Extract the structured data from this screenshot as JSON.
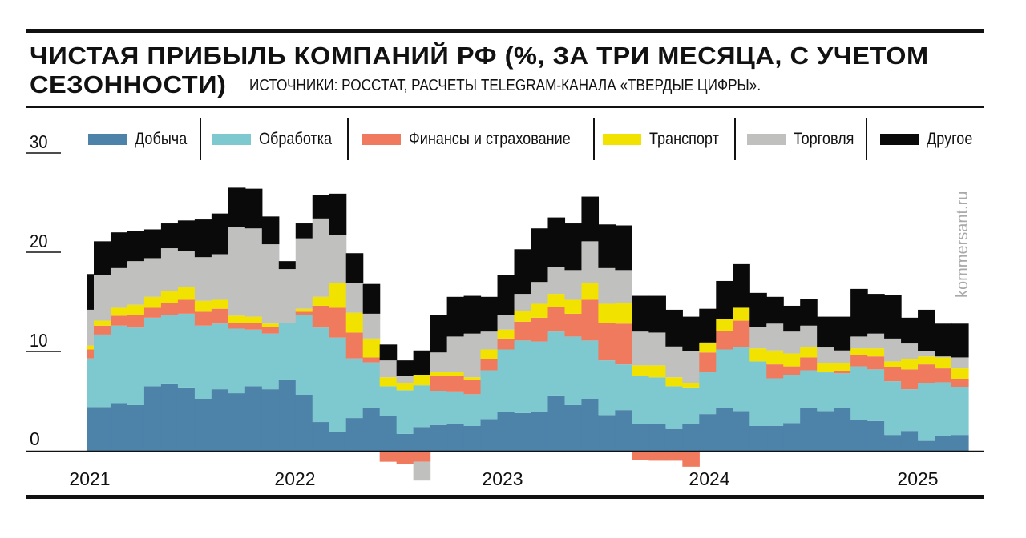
{
  "title_line1": "ЧИСТАЯ ПРИБЫЛЬ КОМПАНИЙ РФ (%, ЗА ТРИ МЕСЯЦА, С УЧЕТОМ",
  "title_line2": "СЕЗОННОСТИ)",
  "source": "ИСТОЧНИКИ: РОССТАТ, РАСЧЕТЫ TELEGRAM-КАНАЛА «ТВЕРДЫЕ ЦИФРЫ».",
  "watermark": "kommersant.ru",
  "chart_data": {
    "type": "bar",
    "stacked": true,
    "title": "ЧИСТАЯ ПРИБЫЛЬ КОМПАНИЙ РФ (%, ЗА ТРИ МЕСЯЦА, С УЧЕТОМ СЕЗОННОСТИ)",
    "xlabel": "",
    "ylabel": "",
    "ylim": [
      -3,
      30
    ],
    "yticks": [
      "0",
      "10",
      "20",
      "30"
    ],
    "xticks": [
      "2021",
      "2022",
      "2023",
      "2024",
      "2025"
    ],
    "legend_position": "top",
    "grid": false,
    "series": [
      {
        "name": "Добыча",
        "color": "#4d82a9",
        "values": [
          4.4,
          4.4,
          4.8,
          4.6,
          6.5,
          6.7,
          6.3,
          5.2,
          6.2,
          5.8,
          6.5,
          6.2,
          7.1,
          5.6,
          2.9,
          1.9,
          3.3,
          4.3,
          3.5,
          1.7,
          2.4,
          2.6,
          2.7,
          2.5,
          3.2,
          3.9,
          3.8,
          3.9,
          5.5,
          4.6,
          5.2,
          3.6,
          4.1,
          2.7,
          2.7,
          2.2,
          2.7,
          3.7,
          4.3,
          4.0,
          2.5,
          2.5,
          2.8,
          4.3,
          4.0,
          4.3,
          3.1,
          3.0,
          1.6,
          2.0,
          1.0,
          1.5,
          1.6
        ]
      },
      {
        "name": "Обработка",
        "color": "#7ec8d0",
        "values": [
          4.9,
          7.3,
          7.8,
          7.8,
          6.9,
          7.0,
          7.5,
          7.4,
          6.6,
          6.5,
          5.7,
          5.6,
          5.8,
          8.1,
          9.5,
          9.5,
          6.0,
          4.6,
          3.0,
          4.4,
          4.2,
          3.4,
          3.2,
          3.2,
          4.9,
          6.3,
          7.3,
          7.1,
          6.5,
          6.9,
          5.9,
          5.5,
          4.6,
          4.8,
          4.7,
          4.3,
          3.6,
          4.2,
          5.9,
          6.4,
          6.5,
          4.8,
          4.8,
          3.8,
          3.9,
          3.5,
          5.4,
          5.2,
          5.4,
          4.2,
          5.8,
          5.4,
          4.8
        ]
      },
      {
        "name": "Финансы и страхование",
        "color": "#f07a5e",
        "values": [
          0.9,
          0.9,
          1.0,
          1.3,
          1.0,
          1.2,
          1.4,
          1.4,
          1.5,
          0.6,
          0.7,
          0.7,
          0,
          0.3,
          2.2,
          3.0,
          2.6,
          0.5,
          -1.1,
          -1.3,
          -1.1,
          1.5,
          1.6,
          1.4,
          1.1,
          1.1,
          1.9,
          2.4,
          2.5,
          2.3,
          4.1,
          3.8,
          4.1,
          -0.9,
          -1.0,
          -1.0,
          -1.6,
          2.0,
          1.9,
          2.7,
          0,
          1.4,
          0.9,
          1.3,
          0,
          0.2,
          1.1,
          1.3,
          1.4,
          2.0,
          1.9,
          1.4,
          0.8
        ]
      },
      {
        "name": "Транспорт",
        "color": "#f2e200",
        "values": [
          0.4,
          0.5,
          0.8,
          1.0,
          1.1,
          1.2,
          1.3,
          1.1,
          0.9,
          0.7,
          0.6,
          0.3,
          0,
          0.3,
          0.9,
          2.5,
          2.0,
          1.9,
          0.9,
          0.7,
          1.0,
          0.4,
          0.4,
          0.3,
          1.0,
          0.9,
          1.1,
          1.4,
          1.3,
          1.4,
          1.7,
          1.9,
          2.1,
          1.1,
          1.2,
          0.9,
          0.5,
          1.0,
          1.2,
          1.3,
          1.3,
          1.4,
          1.3,
          1.0,
          0.9,
          0.8,
          0.7,
          0.8,
          0.6,
          1.0,
          0.8,
          1.1,
          1.1
        ]
      },
      {
        "name": "Торговля",
        "color": "#c0c0bf",
        "values": [
          3.6,
          4.6,
          4.0,
          4.4,
          3.9,
          4.3,
          3.6,
          4.4,
          4.6,
          8.9,
          8.9,
          8.0,
          5.4,
          7.1,
          7.9,
          4.8,
          3.0,
          2.5,
          1.7,
          0.7,
          -1.9,
          2.0,
          3.6,
          4.4,
          1.8,
          1.5,
          1.7,
          2.2,
          2.7,
          3.0,
          4.2,
          3.6,
          3.3,
          3.4,
          3.3,
          3.1,
          3.2,
          0,
          0,
          0,
          2.2,
          2.7,
          2.2,
          2.2,
          1.6,
          1.3,
          1.2,
          1.5,
          2.3,
          1.6,
          0.5,
          0.1,
          1.1
        ]
      },
      {
        "name": "Другое",
        "color": "#0a0a0a",
        "values": [
          3.6,
          3.4,
          3.6,
          3.0,
          2.9,
          2.5,
          3.1,
          3.8,
          4.1,
          4.0,
          4.0,
          2.8,
          0.8,
          1.5,
          2.4,
          4.2,
          3.0,
          3.0,
          1.6,
          1.6,
          2.5,
          3.8,
          4.0,
          3.8,
          3.5,
          4.0,
          4.5,
          5.4,
          5.0,
          4.7,
          4.5,
          4.4,
          4.5,
          3.6,
          3.7,
          3.7,
          3.5,
          3.4,
          3.8,
          4.4,
          3.4,
          2.7,
          2.6,
          2.7,
          3.1,
          3.4,
          4.8,
          4.0,
          4.4,
          2.6,
          4.2,
          3.3,
          3.4
        ]
      }
    ]
  }
}
